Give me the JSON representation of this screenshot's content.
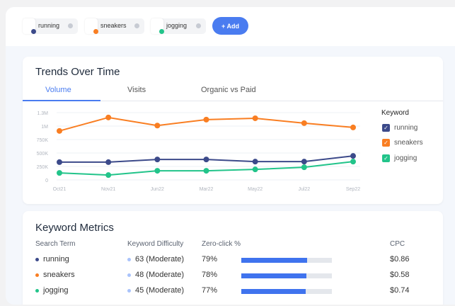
{
  "keywords": [
    {
      "label": "running",
      "color": "#3c4a8a"
    },
    {
      "label": "sneakers",
      "color": "#f97e22"
    },
    {
      "label": "jogging",
      "color": "#22c48a"
    }
  ],
  "add_label": "+ Add",
  "trends": {
    "title": "Trends Over Time",
    "tabs": [
      "Volume",
      "Visits",
      "Organic vs Paid"
    ],
    "active_tab": "Volume",
    "legend_title": "Keyword"
  },
  "chart_data": {
    "type": "line",
    "x": [
      "Oct21",
      "Nov21",
      "Jun22",
      "Mar22",
      "May22",
      "Jul22",
      "Sep22"
    ],
    "yticks": [
      "0",
      "250K",
      "500K",
      "750K",
      "1M",
      "1.3M"
    ],
    "ylim": [
      0,
      1300000
    ],
    "grid": true,
    "legend": "right",
    "series": [
      {
        "name": "running",
        "color": "#3c4a8a",
        "values": [
          330000,
          330000,
          380000,
          380000,
          340000,
          340000,
          445000
        ]
      },
      {
        "name": "sneakers",
        "color": "#f97e22",
        "values": [
          910000,
          1160000,
          1010000,
          1120000,
          1145000,
          1055000,
          975000
        ]
      },
      {
        "name": "jogging",
        "color": "#22c48a",
        "values": [
          130000,
          90000,
          170000,
          170000,
          195000,
          235000,
          340000
        ]
      }
    ]
  },
  "metrics": {
    "title": "Keyword Metrics",
    "headers": [
      "Search Term",
      "Keyword Difficulty",
      "Zero-click %",
      "CPC"
    ],
    "rows": [
      {
        "term": "running",
        "color": "#3c4a8a",
        "difficulty": "63 (Moderate)",
        "zero_click": "79%",
        "zero_click_value": 79,
        "cpc": "$0.86"
      },
      {
        "term": "sneakers",
        "color": "#f97e22",
        "difficulty": "48 (Moderate)",
        "zero_click": "78%",
        "zero_click_value": 78,
        "cpc": "$0.58"
      },
      {
        "term": "jogging",
        "color": "#22c48a",
        "difficulty": "45 (Moderate)",
        "zero_click": "77%",
        "zero_click_value": 77,
        "cpc": "$0.74"
      }
    ],
    "difficulty_dot_color": "#a9c3fb"
  }
}
